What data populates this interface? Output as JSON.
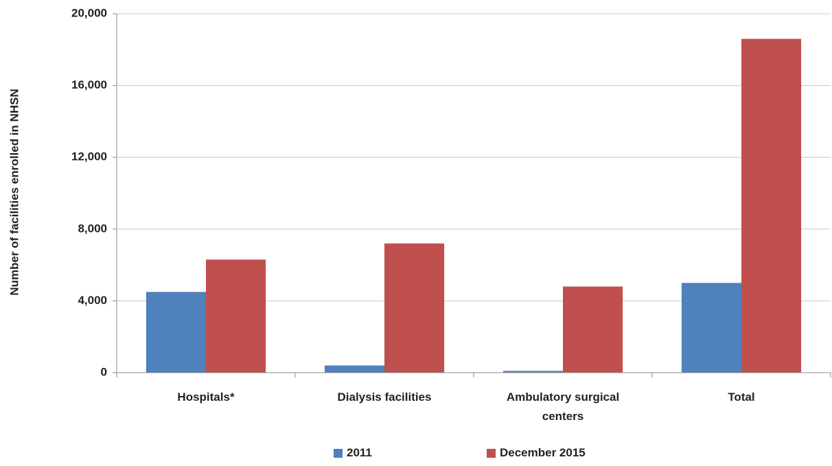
{
  "chart_data": {
    "type": "bar",
    "y_label": "Number of facilities enrolled in NHSN",
    "categories": [
      "Hospitals*",
      "Dialysis facilities",
      "Ambulatory surgical centers",
      "Total"
    ],
    "series": [
      {
        "name": "2011",
        "color": "#4f81bd",
        "values": [
          4500,
          400,
          100,
          5000
        ]
      },
      {
        "name": "December 2015",
        "color": "#c0504d",
        "values": [
          6300,
          7200,
          4800,
          18600
        ]
      }
    ],
    "ylim": [
      0,
      20000
    ],
    "yticks": [
      0,
      {
        "value": 4000,
        "label": "4,000"
      },
      {
        "value": 8000,
        "label": "8,000"
      },
      {
        "value": 12000,
        "label": "12,000"
      },
      {
        "value": 16000,
        "label": "16,000"
      },
      {
        "value": 20000,
        "label": "20,000"
      }
    ],
    "grid": true
  }
}
